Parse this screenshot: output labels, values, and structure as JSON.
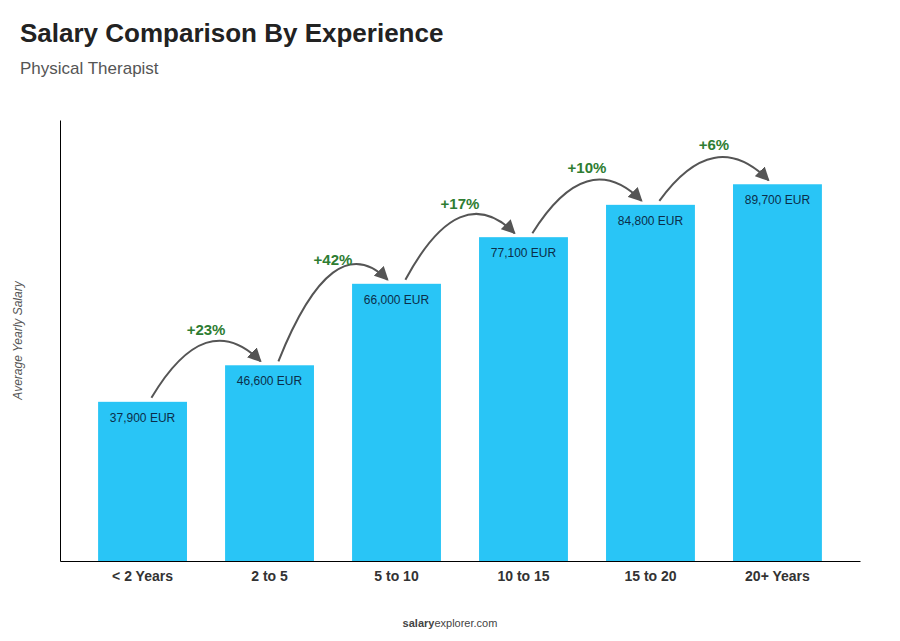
{
  "chart_data": {
    "type": "bar",
    "title": "Salary Comparison By Experience",
    "subtitle": "Physical Therapist",
    "y_label": "Average Yearly Salary",
    "categories": [
      "< 2 Years",
      "2 to 5",
      "5 to 10",
      "10 to 15",
      "15 to 20",
      "20+ Years"
    ],
    "values": [
      37900,
      46600,
      66000,
      77100,
      84800,
      89700
    ],
    "value_labels": [
      "37,900 EUR",
      "46,600 EUR",
      "66,000 EUR",
      "77,100 EUR",
      "84,800 EUR",
      "89,700 EUR"
    ],
    "data_labels": true,
    "annotations": [
      "+23%",
      "+42%",
      "+17%",
      "+10%",
      "+6%"
    ],
    "footer": [
      "salary",
      "explorer.com"
    ],
    "color": "#29c5f6",
    "ylim": [
      0,
      105000
    ],
    "tick_labels": "x",
    "grid": false
  }
}
